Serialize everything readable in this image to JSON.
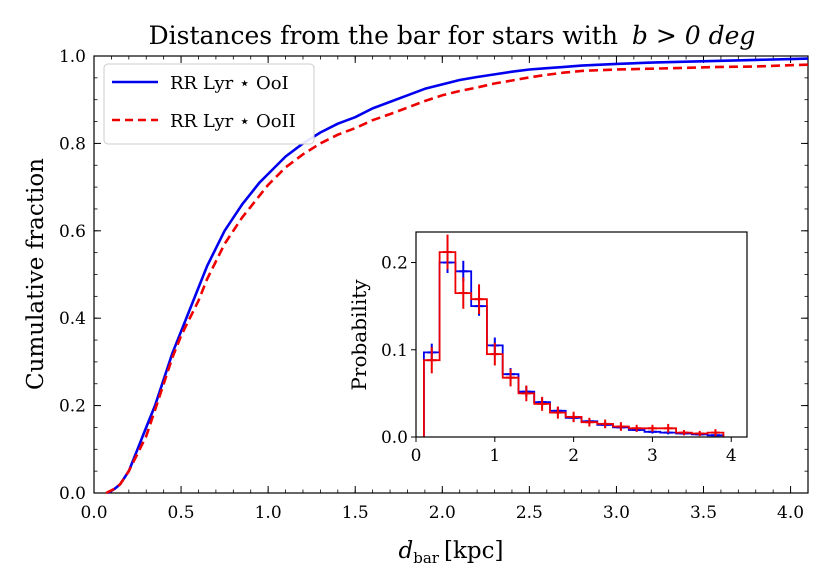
{
  "chart_data": [
    {
      "type": "line",
      "title_prefix": "Distances from the bar for stars with",
      "title_math": "b > 0 deg",
      "xlabel_main": "d",
      "xlabel_sub": "bar",
      "xlabel_unit": "[kpc]",
      "ylabel": "Cumulative fraction",
      "xlim": [
        0.0,
        4.1
      ],
      "ylim": [
        0.0,
        1.0
      ],
      "x_ticks": [
        0.0,
        0.5,
        1.0,
        1.5,
        2.0,
        2.5,
        3.0,
        3.5,
        4.0
      ],
      "x_tick_labels": [
        "0.0",
        "0.5",
        "1.0",
        "1.5",
        "2.0",
        "2.5",
        "3.0",
        "3.5",
        "4.0"
      ],
      "y_ticks": [
        0.0,
        0.2,
        0.4,
        0.6,
        0.8,
        1.0
      ],
      "y_tick_labels": [
        "0.0",
        "0.2",
        "0.4",
        "0.6",
        "0.8",
        "1.0"
      ],
      "legend_position": "top-left",
      "series": [
        {
          "name": "RR Lyr ⋆ OoI",
          "color": "#0000ee",
          "style": "solid",
          "x": [
            0.08,
            0.12,
            0.15,
            0.2,
            0.25,
            0.3,
            0.35,
            0.4,
            0.45,
            0.5,
            0.55,
            0.6,
            0.65,
            0.7,
            0.75,
            0.8,
            0.85,
            0.9,
            0.95,
            1.0,
            1.1,
            1.2,
            1.3,
            1.4,
            1.5,
            1.6,
            1.7,
            1.8,
            1.9,
            2.0,
            2.1,
            2.2,
            2.3,
            2.4,
            2.5,
            2.6,
            2.7,
            2.8,
            3.0,
            3.2,
            3.4,
            3.6,
            3.8,
            4.0,
            4.1
          ],
          "y": [
            0.0,
            0.01,
            0.02,
            0.05,
            0.1,
            0.15,
            0.2,
            0.26,
            0.32,
            0.37,
            0.42,
            0.47,
            0.52,
            0.56,
            0.6,
            0.63,
            0.66,
            0.685,
            0.71,
            0.73,
            0.77,
            0.8,
            0.825,
            0.845,
            0.86,
            0.88,
            0.895,
            0.91,
            0.925,
            0.935,
            0.945,
            0.952,
            0.958,
            0.964,
            0.969,
            0.972,
            0.975,
            0.978,
            0.982,
            0.985,
            0.987,
            0.989,
            0.991,
            0.993,
            0.994
          ]
        },
        {
          "name": "RR Lyr ⋆ OoII",
          "color": "#ee0000",
          "style": "dashed",
          "x": [
            0.07,
            0.12,
            0.15,
            0.2,
            0.25,
            0.3,
            0.35,
            0.4,
            0.45,
            0.5,
            0.55,
            0.6,
            0.65,
            0.7,
            0.75,
            0.8,
            0.85,
            0.9,
            0.95,
            1.0,
            1.1,
            1.2,
            1.3,
            1.4,
            1.5,
            1.6,
            1.7,
            1.8,
            1.9,
            2.0,
            2.1,
            2.2,
            2.3,
            2.4,
            2.5,
            2.6,
            2.7,
            2.8,
            3.0,
            3.2,
            3.4,
            3.6,
            3.8,
            4.0,
            4.1
          ],
          "y": [
            0.0,
            0.01,
            0.02,
            0.05,
            0.09,
            0.13,
            0.19,
            0.25,
            0.31,
            0.36,
            0.4,
            0.44,
            0.49,
            0.53,
            0.57,
            0.6,
            0.63,
            0.655,
            0.68,
            0.705,
            0.745,
            0.775,
            0.8,
            0.82,
            0.835,
            0.853,
            0.867,
            0.882,
            0.897,
            0.91,
            0.92,
            0.928,
            0.937,
            0.944,
            0.951,
            0.957,
            0.962,
            0.966,
            0.969,
            0.971,
            0.973,
            0.975,
            0.976,
            0.979,
            0.98
          ]
        }
      ]
    },
    {
      "type": "histogram",
      "position": "inset",
      "ylabel": "Probability",
      "xlim": [
        0.0,
        4.2
      ],
      "ylim": [
        0.0,
        0.235
      ],
      "x_ticks": [
        0,
        1,
        2,
        3,
        4
      ],
      "x_tick_labels": [
        "0",
        "1",
        "2",
        "3",
        "4"
      ],
      "y_ticks": [
        0.0,
        0.1,
        0.2
      ],
      "y_tick_labels": [
        "0.0",
        "0.1",
        "0.2"
      ],
      "bin_edges": [
        0.1,
        0.3,
        0.5,
        0.7,
        0.9,
        1.1,
        1.3,
        1.5,
        1.7,
        1.9,
        2.1,
        2.3,
        2.5,
        2.7,
        2.9,
        3.1,
        3.3,
        3.5,
        3.7,
        3.9
      ],
      "series": [
        {
          "name": "RR Lyr ⋆ OoI",
          "color": "#0000ee",
          "values": [
            0.097,
            0.2,
            0.19,
            0.15,
            0.105,
            0.072,
            0.052,
            0.04,
            0.03,
            0.022,
            0.018,
            0.014,
            0.011,
            0.008,
            0.006,
            0.005,
            0.004,
            0.003,
            0.002
          ],
          "errors": [
            0.01,
            0.012,
            0.012,
            0.011,
            0.009,
            0.007,
            0.006,
            0.005,
            0.004,
            0.004,
            0.003,
            0.003,
            0.003,
            0.002,
            0.002,
            0.002,
            0.002,
            0.001,
            0.001
          ]
        },
        {
          "name": "RR Lyr ⋆ OoII",
          "color": "#ee0000",
          "values": [
            0.088,
            0.212,
            0.165,
            0.158,
            0.095,
            0.068,
            0.05,
            0.038,
            0.028,
            0.023,
            0.017,
            0.015,
            0.012,
            0.01,
            0.01,
            0.01,
            0.005,
            0.004,
            0.005
          ],
          "errors": [
            0.015,
            0.02,
            0.018,
            0.017,
            0.013,
            0.01,
            0.009,
            0.008,
            0.007,
            0.006,
            0.005,
            0.005,
            0.005,
            0.004,
            0.004,
            0.005,
            0.003,
            0.003,
            0.004
          ]
        }
      ]
    }
  ]
}
